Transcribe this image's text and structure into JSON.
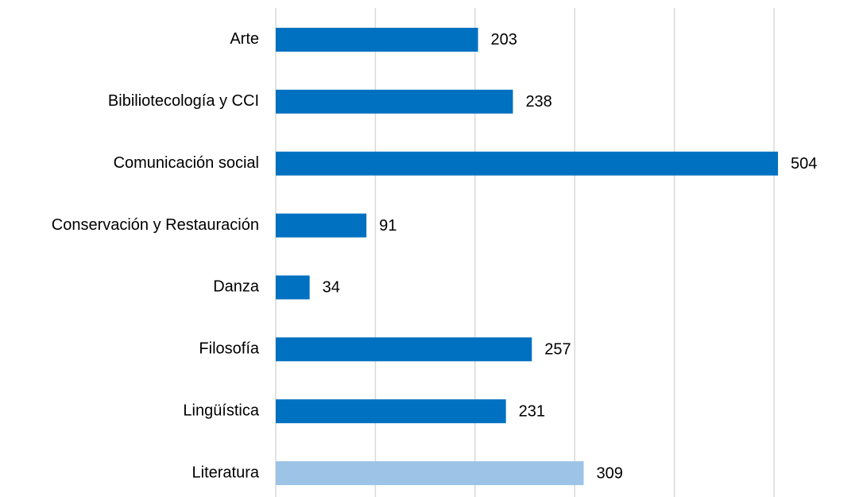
{
  "chart_data": {
    "type": "bar",
    "orientation": "horizontal",
    "categories": [
      "Arte",
      "Bibiliotecología y CCI",
      "Comunicación social",
      "Conservación y Restauración",
      "Danza",
      "Filosofía",
      "Lingüística",
      "Literatura"
    ],
    "values": [
      203,
      238,
      504,
      91,
      34,
      257,
      231,
      309
    ],
    "colors": [
      "#0070c0",
      "#0070c0",
      "#0070c0",
      "#0070c0",
      "#0070c0",
      "#0070c0",
      "#0070c0",
      "#9dc3e6"
    ],
    "xlim": [
      0,
      500
    ],
    "xticks": [
      0,
      100,
      200,
      300,
      400,
      500
    ],
    "grid": true
  }
}
